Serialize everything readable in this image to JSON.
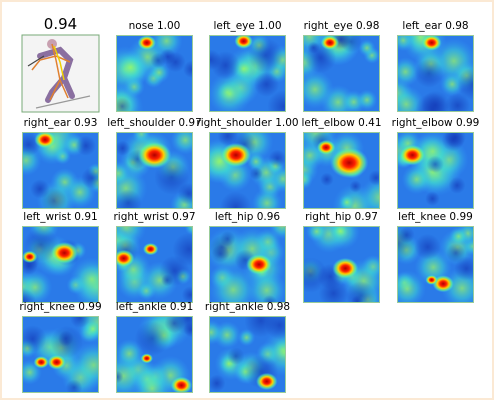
{
  "panels": [
    {
      "title": "0.94"
    },
    {
      "title": "nose 1.00"
    },
    {
      "title": "left_eye 1.00"
    },
    {
      "title": "right_eye 0.98"
    },
    {
      "title": "left_ear 0.98"
    },
    {
      "title": "right_ear 0.93"
    },
    {
      "title": "left_shoulder 0.97"
    },
    {
      "title": "right_shoulder 1.00"
    },
    {
      "title": "left_elbow 0.41"
    },
    {
      "title": "right_elbow 0.99"
    },
    {
      "title": "left_wrist 0.91"
    },
    {
      "title": "right_wrist 0.97"
    },
    {
      "title": "left_hip 0.96"
    },
    {
      "title": "right_hip 0.97"
    },
    {
      "title": "left_knee 0.99"
    },
    {
      "title": "right_knee 0.99"
    },
    {
      "title": "left_ankle 0.91"
    },
    {
      "title": "right_ankle 0.98"
    }
  ]
}
